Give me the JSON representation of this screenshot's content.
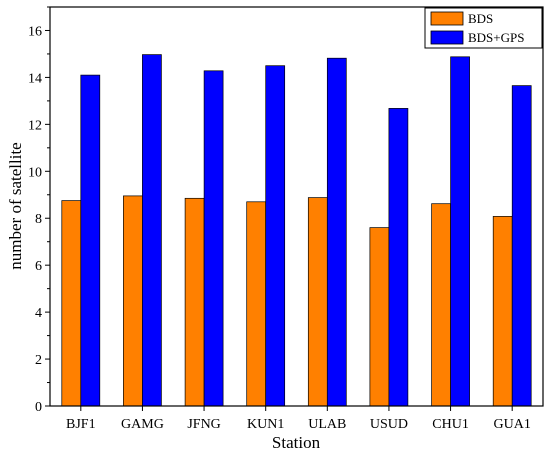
{
  "chart_data": {
    "type": "bar",
    "title": "",
    "xlabel": "Station",
    "ylabel": "number of satellite",
    "categories": [
      "BJF1",
      "GAMG",
      "JFNG",
      "KUN1",
      "ULAB",
      "USUD",
      "CHU1",
      "GUA1"
    ],
    "series": [
      {
        "name": "BDS",
        "color": "#ff8000",
        "values": [
          8.75,
          8.95,
          8.85,
          8.7,
          8.88,
          7.6,
          8.62,
          8.08
        ]
      },
      {
        "name": "BDS+GPS",
        "color": "#0000ff",
        "values": [
          14.1,
          14.97,
          14.28,
          14.5,
          14.82,
          12.68,
          14.88,
          13.65
        ]
      }
    ],
    "ylim": [
      0,
      17
    ],
    "yticks": [
      0,
      2,
      4,
      6,
      8,
      10,
      12,
      14,
      16
    ],
    "grid": false,
    "legend_position": "top-right"
  }
}
